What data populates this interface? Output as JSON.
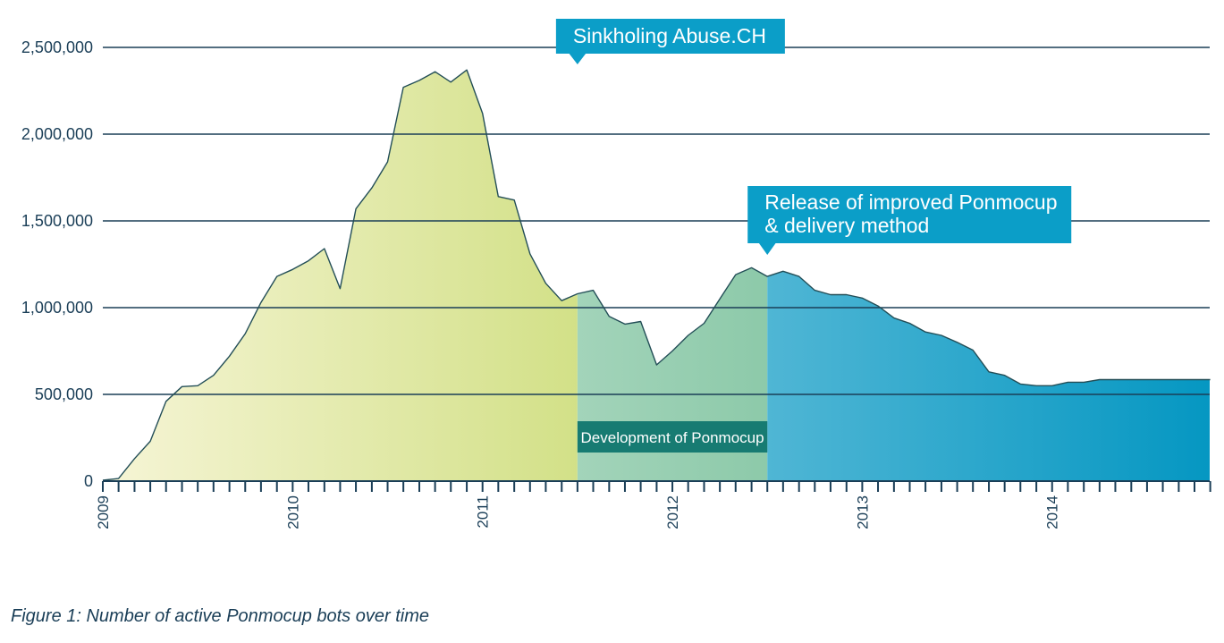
{
  "chart_data": {
    "type": "area",
    "title": "",
    "xlabel": "",
    "ylabel": "",
    "ylim": [
      0,
      2500000
    ],
    "grid": true,
    "y_ticks": [
      0,
      500000,
      1000000,
      1500000,
      2000000,
      2500000
    ],
    "y_tick_labels": [
      "0",
      "500,000",
      "1,000,000",
      "1,500,000",
      "2,000,000",
      "2,500,000"
    ],
    "x_range_years": [
      2009.0,
      2014.83
    ],
    "x_year_labels": [
      "2009",
      "2010",
      "2011",
      "2012",
      "2013",
      "2014"
    ],
    "series": [
      {
        "name": "Active Ponmocup bots",
        "x": [
          2009.0,
          2009.083,
          2009.167,
          2009.25,
          2009.333,
          2009.417,
          2009.5,
          2009.583,
          2009.667,
          2009.75,
          2009.833,
          2009.917,
          2010.0,
          2010.083,
          2010.167,
          2010.25,
          2010.333,
          2010.417,
          2010.5,
          2010.583,
          2010.667,
          2010.75,
          2010.833,
          2010.917,
          2011.0,
          2011.083,
          2011.167,
          2011.25,
          2011.333,
          2011.417,
          2011.5,
          2011.583,
          2011.667,
          2011.75,
          2011.833,
          2011.917,
          2012.0,
          2012.083,
          2012.167,
          2012.25,
          2012.333,
          2012.417,
          2012.5,
          2012.583,
          2012.667,
          2012.75,
          2012.833,
          2012.917,
          2013.0,
          2013.083,
          2013.167,
          2013.25,
          2013.333,
          2013.417,
          2013.5,
          2013.583,
          2013.667,
          2013.75,
          2013.833,
          2013.917,
          2014.0,
          2014.083,
          2014.167,
          2014.25,
          2014.333,
          2014.417,
          2014.5,
          2014.583,
          2014.667,
          2014.75,
          2014.833
        ],
        "values": [
          5000,
          15000,
          130000,
          230000,
          460000,
          545000,
          550000,
          610000,
          720000,
          850000,
          1030000,
          1180000,
          1220000,
          1270000,
          1340000,
          1110000,
          1570000,
          1690000,
          1840000,
          2270000,
          2310000,
          2360000,
          2300000,
          2370000,
          2120000,
          1640000,
          1620000,
          1310000,
          1140000,
          1040000,
          1080000,
          1100000,
          950000,
          905000,
          920000,
          670000,
          750000,
          840000,
          910000,
          1050000,
          1190000,
          1230000,
          1180000,
          1210000,
          1180000,
          1100000,
          1075000,
          1075000,
          1055000,
          1010000,
          940000,
          910000,
          860000,
          840000,
          800000,
          755000,
          630000,
          610000,
          560000,
          550000,
          550000,
          570000,
          570000,
          585000,
          585000,
          585000,
          585000,
          585000,
          585000,
          585000,
          585000
        ]
      }
    ],
    "annotations": [
      {
        "text": "Sinkholing Abuse.CH",
        "x": 2011.5
      },
      {
        "text": "Release of improved Ponmocup & delivery method",
        "lines": [
          "Release of improved Ponmocup",
          "& delivery method"
        ],
        "x": 2012.5
      },
      {
        "text": "Development of Ponmocup",
        "x_range": [
          2011.5,
          2012.5
        ]
      }
    ],
    "phases": [
      {
        "name": "pre-sinkhole",
        "x_range": [
          2009.0,
          2011.5
        ],
        "color_from": "#f6f5d6",
        "color_to": "#a3c51f"
      },
      {
        "name": "development",
        "x_range": [
          2011.5,
          2012.5
        ],
        "color_from": "#d9ede3",
        "color_to": "#5ab283"
      },
      {
        "name": "release",
        "x_range": [
          2012.5,
          2014.83
        ],
        "color_from": "#bfe4f0",
        "color_to": "#0597c2"
      }
    ],
    "colors": {
      "axis": "#1a3e57",
      "callout": "#0b9ec8",
      "dev_box": "#177b72",
      "line": "#234e57"
    }
  },
  "caption": "Figure 1: Number of active Ponmocup bots over time"
}
